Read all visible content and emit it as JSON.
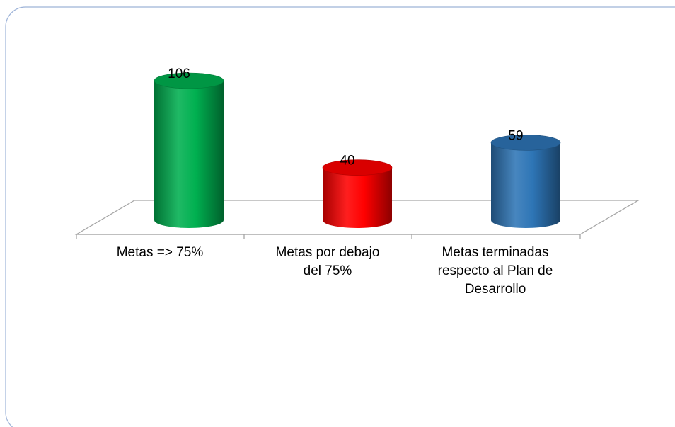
{
  "chart_data": {
    "type": "bar",
    "style": "3d-cylinder",
    "categories": [
      "Metas => 75%",
      "Metas por debajo del 75%",
      "Metas terminadas respecto al Plan de Desarrollo"
    ],
    "category_lines": [
      [
        "Metas => 75%"
      ],
      [
        "Metas por debajo",
        "del 75%"
      ],
      [
        "Metas terminadas",
        "respecto al Plan de",
        "Desarrollo"
      ]
    ],
    "values": [
      106,
      40,
      59
    ],
    "data_labels": [
      "106",
      "40",
      "59"
    ],
    "colors": [
      "#00B050",
      "#FF0000",
      "#2E75B6"
    ],
    "title": "",
    "xlabel": "",
    "ylabel": "",
    "ylim": [
      0,
      106
    ],
    "grid": false,
    "legend": "none"
  },
  "colors": {
    "frame_border": "#9DB3D8",
    "floor_line": "#A6A6A6",
    "green": "#00B050",
    "red": "#FF0000",
    "blue": "#2E75B6"
  }
}
